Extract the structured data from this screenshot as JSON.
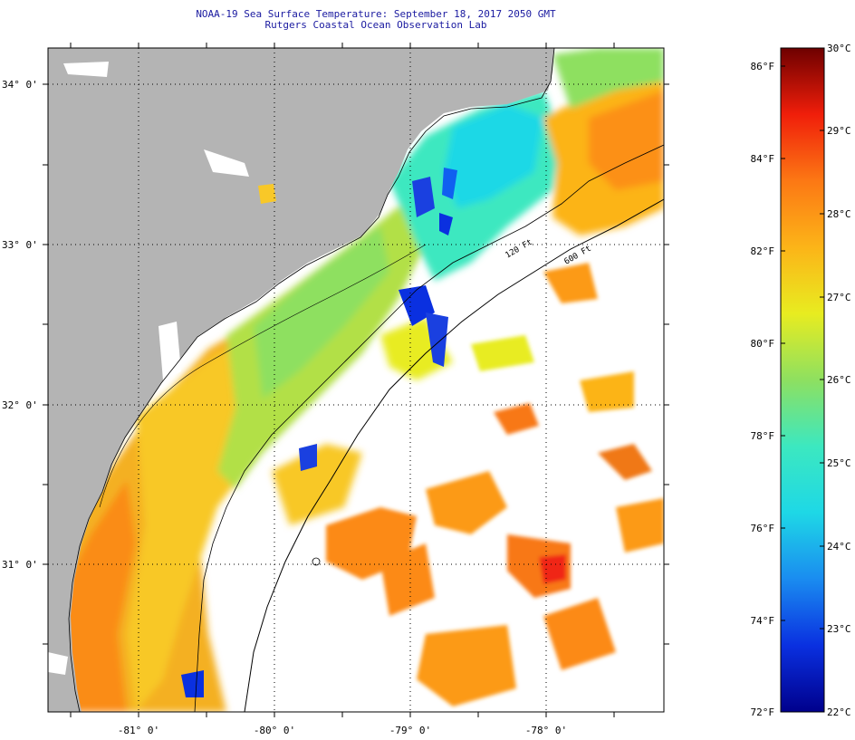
{
  "map": {
    "title": "NOAA-19 Sea Surface Temperature:  September 18, 2017 2050 GMT",
    "subtitle": "Rutgers Coastal Ocean Observation Lab",
    "latitude_labels": [
      "34° 0'",
      "33° 0'",
      "32° 0'",
      "31° 0'"
    ],
    "longitude_labels": [
      "-81° 0'",
      "-80° 0'",
      "-79° 0'",
      "-78° 0'"
    ],
    "isobath_labels": [
      "120 Ft",
      "600 Ft"
    ],
    "colors": {
      "land": "#b4b4b4",
      "cloud": "#ffffff",
      "title": "#1a1aa0"
    }
  },
  "colorbar": {
    "celsius_labels": [
      "30°C",
      "29°C",
      "28°C",
      "27°C",
      "26°C",
      "25°C",
      "24°C",
      "23°C",
      "22°C"
    ],
    "fahrenheit_labels": [
      "86°F",
      "84°F",
      "82°F",
      "80°F",
      "78°F",
      "76°F",
      "74°F",
      "72°F"
    ],
    "colors": [
      "#00008c",
      "#0a30e0",
      "#1a8cf0",
      "#1ed8e6",
      "#3ce8c0",
      "#8ee060",
      "#e8ec20",
      "#fcb418",
      "#fc7814",
      "#f01e0a",
      "#6e0000"
    ]
  }
}
